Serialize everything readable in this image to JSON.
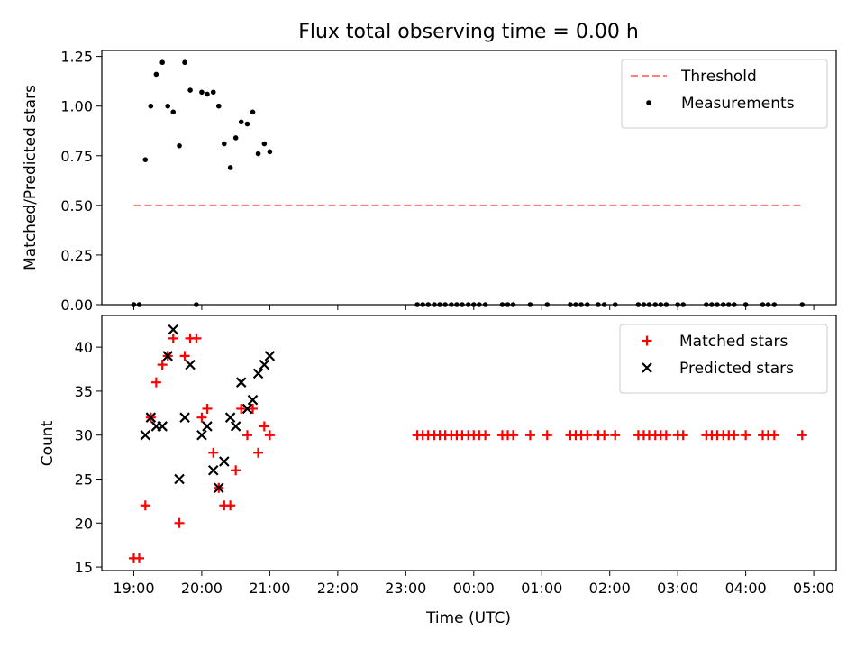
{
  "chart_data": [
    {
      "type": "scatter",
      "title": "Flux total observing time = 0.00 h",
      "xlabel": "",
      "ylabel": "Matched/Predicted stars",
      "xlim": [
        -0.47,
        10.33
      ],
      "ylim": [
        0.0,
        1.28
      ],
      "yticks": [
        0.0,
        0.25,
        0.5,
        0.75,
        1.0,
        1.25
      ],
      "ytick_labels": [
        "0.00",
        "0.25",
        "0.50",
        "0.75",
        "1.00",
        "1.25"
      ],
      "legend_position": "top-right",
      "threshold": {
        "name": "Threshold",
        "y": 0.5,
        "x_range": [
          0.0,
          9.83
        ],
        "color": "#ff7f7f",
        "style": "dashed"
      },
      "series": [
        {
          "name": "Measurements",
          "color": "#000000",
          "marker": "dot",
          "x": [
            0.0,
            0.08,
            0.17,
            0.25,
            0.33,
            0.42,
            0.5,
            0.58,
            0.67,
            0.75,
            0.83,
            0.92,
            1.0,
            1.08,
            1.17,
            1.25,
            1.33,
            1.42,
            1.5,
            1.58,
            1.67,
            1.75,
            1.83,
            1.92,
            2.0,
            4.17,
            4.25,
            4.33,
            4.42,
            4.5,
            4.58,
            4.67,
            4.75,
            4.83,
            4.92,
            5.0,
            5.08,
            5.17,
            5.42,
            5.5,
            5.58,
            5.83,
            6.08,
            6.42,
            6.5,
            6.58,
            6.67,
            6.83,
            6.92,
            7.08,
            7.42,
            7.5,
            7.58,
            7.67,
            7.75,
            7.83,
            8.0,
            8.08,
            8.42,
            8.5,
            8.58,
            8.67,
            8.75,
            8.83,
            9.0,
            9.25,
            9.33,
            9.42,
            9.83
          ],
          "y": [
            0.0,
            0.0,
            0.73,
            1.0,
            1.16,
            1.22,
            1.0,
            0.97,
            0.8,
            1.22,
            1.08,
            0.0,
            1.07,
            1.06,
            1.07,
            1.0,
            0.81,
            0.69,
            0.84,
            0.92,
            0.91,
            0.97,
            0.76,
            0.81,
            0.77,
            0.0,
            0.0,
            0.0,
            0.0,
            0.0,
            0.0,
            0.0,
            0.0,
            0.0,
            0.0,
            0.0,
            0.0,
            0.0,
            0.0,
            0.0,
            0.0,
            0.0,
            0.0,
            0.0,
            0.0,
            0.0,
            0.0,
            0.0,
            0.0,
            0.0,
            0.0,
            0.0,
            0.0,
            0.0,
            0.0,
            0.0,
            0.0,
            0.0,
            0.0,
            0.0,
            0.0,
            0.0,
            0.0,
            0.0,
            0.0,
            0.0,
            0.0,
            0.0,
            0.0
          ]
        }
      ]
    },
    {
      "type": "scatter",
      "title": "",
      "xlabel": "Time (UTC)",
      "ylabel": "Count",
      "xlim": [
        -0.47,
        10.33
      ],
      "ylim": [
        14.6,
        43.6
      ],
      "yticks": [
        15,
        20,
        25,
        30,
        35,
        40
      ],
      "ytick_labels": [
        "15",
        "20",
        "25",
        "30",
        "35",
        "40"
      ],
      "xticks": [
        0,
        1,
        2,
        3,
        4,
        5,
        6,
        7,
        8,
        9,
        10
      ],
      "xtick_labels": [
        "19:00",
        "20:00",
        "21:00",
        "22:00",
        "23:00",
        "00:00",
        "01:00",
        "02:00",
        "03:00",
        "04:00",
        "05:00"
      ],
      "legend_position": "top-right",
      "series": [
        {
          "name": "Matched stars",
          "color": "#ff0000",
          "marker": "plus",
          "x": [
            0.0,
            0.08,
            0.17,
            0.25,
            0.33,
            0.42,
            0.5,
            0.58,
            0.67,
            0.75,
            0.83,
            0.92,
            1.0,
            1.08,
            1.17,
            1.25,
            1.33,
            1.42,
            1.5,
            1.58,
            1.67,
            1.75,
            1.83,
            1.92,
            2.0,
            4.17,
            4.25,
            4.33,
            4.42,
            4.5,
            4.58,
            4.67,
            4.75,
            4.83,
            4.92,
            5.0,
            5.08,
            5.17,
            5.42,
            5.5,
            5.58,
            5.83,
            6.08,
            6.42,
            6.5,
            6.58,
            6.67,
            6.83,
            6.92,
            7.08,
            7.42,
            7.5,
            7.58,
            7.67,
            7.75,
            7.83,
            8.0,
            8.08,
            8.42,
            8.5,
            8.58,
            8.67,
            8.75,
            8.83,
            9.0,
            9.25,
            9.33,
            9.42,
            9.83
          ],
          "y": [
            16,
            16,
            22,
            32,
            36,
            38,
            39,
            41,
            20,
            39,
            41,
            41,
            32,
            33,
            28,
            24,
            22,
            22,
            26,
            33,
            30,
            33,
            28,
            31,
            30,
            30,
            30,
            30,
            30,
            30,
            30,
            30,
            30,
            30,
            30,
            30,
            30,
            30,
            30,
            30,
            30,
            30,
            30,
            30,
            30,
            30,
            30,
            30,
            30,
            30,
            30,
            30,
            30,
            30,
            30,
            30,
            30,
            30,
            30,
            30,
            30,
            30,
            30,
            30,
            30,
            30,
            30,
            30,
            30
          ]
        },
        {
          "name": "Predicted stars",
          "color": "#000000",
          "marker": "x",
          "x": [
            0.17,
            0.25,
            0.33,
            0.42,
            0.5,
            0.58,
            0.67,
            0.75,
            0.83,
            1.0,
            1.08,
            1.17,
            1.25,
            1.33,
            1.42,
            1.5,
            1.58,
            1.67,
            1.75,
            1.83,
            1.92,
            2.0
          ],
          "y": [
            30,
            32,
            31,
            31,
            39,
            42,
            25,
            32,
            38,
            30,
            31,
            26,
            24,
            27,
            32,
            31,
            36,
            33,
            34,
            37,
            38,
            39
          ]
        }
      ]
    }
  ]
}
